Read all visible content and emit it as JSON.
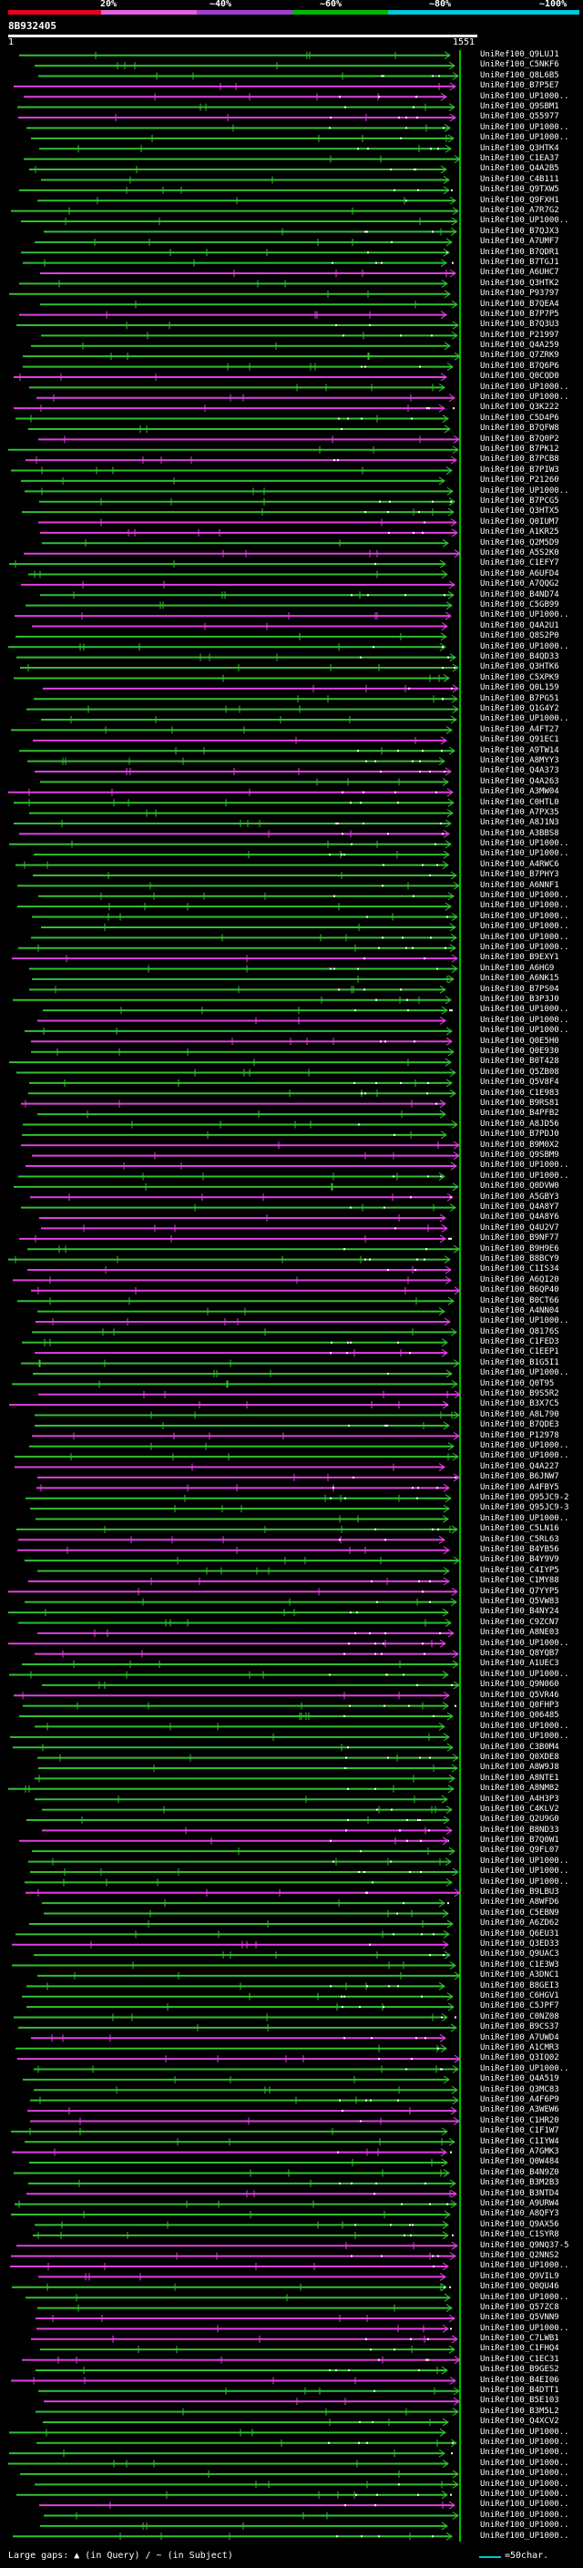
{
  "scale": {
    "ticks": [
      "20%",
      "~40%",
      "~60%",
      "~80%",
      "~100%"
    ],
    "colors": [
      "#e8001c",
      "#e060e0",
      "#a040d0",
      "#00b800",
      "#00c8d8"
    ]
  },
  "query": {
    "id": "8B932405",
    "start": "1",
    "end": "1551"
  },
  "hits": [
    "UniRef100_Q9LUJ1",
    "UniRef100_C5NKF6",
    "UniRef100_Q8L6B5",
    "UniRef100_B7P5E7",
    "UniRef100_UP1000..",
    "UniRef100_Q9SBM1",
    "UniRef100_Q55977",
    "UniRef100_UP1000..",
    "UniRef100_UP1000..",
    "UniRef100_Q3HTK4",
    "UniRef100_C1EA37",
    "UniRef100_Q4A2B5",
    "UniRef100_C4B111",
    "UniRef100_Q9TXW5",
    "UniRef100_Q9FXH1",
    "UniRef100_A7R7G2",
    "UniRef100_UP1000..",
    "UniRef100_B7QJX3",
    "UniRef100_A7UMF7",
    "UniRef100_B7QDR1",
    "UniRef100_B7TGJ1",
    "UniRef100_A6UHC7",
    "UniRef100_Q3HTK2",
    "UniRef100_P93797",
    "UniRef100_B7QEA4",
    "UniRef100_B7P7P5",
    "UniRef100_B7Q3U3",
    "UniRef100_P21997",
    "UniRef100_Q4A259",
    "UniRef100_Q7ZRK9",
    "UniRef100_B7Q6P6",
    "UniRef100_Q0CQD0",
    "UniRef100_UP1000..",
    "UniRef100_UP1000..",
    "UniRef100_Q3K222",
    "UniRef100_C5D4P6",
    "UniRef100_B7QFW8",
    "UniRef100_B7Q0P2",
    "UniRef100_B7PK12",
    "UniRef100_B7PCB8",
    "UniRef100_B7PIW3",
    "UniRef100_P21260",
    "UniRef100_UP1000..",
    "UniRef100_B7PCG5",
    "UniRef100_Q3HTX5",
    "UniRef100_Q0IUM7",
    "UniRef100_A1KR25",
    "UniRef100_Q2M5D9",
    "UniRef100_A5S2K0",
    "UniRef100_C1EFY7",
    "UniRef100_A6UFD4",
    "UniRef100_A7QQG2",
    "UniRef100_B4ND74",
    "UniRef100_C5GB99",
    "UniRef100_UP1000..",
    "UniRef100_Q4A2U1",
    "UniRef100_Q8S2P0",
    "UniRef100_UP1000..",
    "UniRef100_B4QD33",
    "UniRef100_Q3HTK6",
    "UniRef100_C5XPK9",
    "UniRef100_Q0L159",
    "UniRef100_B7PG51",
    "UniRef100_Q1G4Y2",
    "UniRef100_UP1000..",
    "UniRef100_A4FT27",
    "UniRef100_Q91EC1",
    "UniRef100_A9TW14",
    "UniRef100_A8MYY3",
    "UniRef100_Q4A373",
    "UniRef100_Q4A263",
    "UniRef100_A3MW04",
    "UniRef100_C0HTL0",
    "UniRef100_A7PX35",
    "UniRef100_A8J1N3",
    "UniRef100_A3BBS8",
    "UniRef100_UP1000..",
    "UniRef100_UP1000..",
    "UniRef100_A4RWC6",
    "UniRef100_B7PHY3",
    "UniRef100_A6NNF1",
    "UniRef100_UP1000..",
    "UniRef100_UP1000..",
    "UniRef100_UP1000..",
    "UniRef100_UP1000..",
    "UniRef100_UP1000..",
    "UniRef100_UP1000..",
    "UniRef100_B9EXY1",
    "UniRef100_A6HG9",
    "UniRef100_A6NK15",
    "UniRef100_B7PS04",
    "UniRef100_B3P3J0",
    "UniRef100_UP1000..",
    "UniRef100_UP1000..",
    "UniRef100_UP1000..",
    "UniRef100_Q0E5H0",
    "UniRef100_Q0E930",
    "UniRef100_B0T428",
    "UniRef100_Q5ZB08",
    "UniRef100_Q5V8F4",
    "UniRef100_C1E983",
    "UniRef100_B9RS81",
    "UniRef100_B4PFB2",
    "UniRef100_A8JD56",
    "UniRef100_B7PDJ0",
    "UniRef100_B9M0X2",
    "UniRef100_Q9SBM9",
    "UniRef100_UP1000..",
    "UniRef100_UP1000..",
    "UniRef100_Q0DVW0",
    "UniRef100_A5GBY3",
    "UniRef100_Q4A8Y7",
    "UniRef100_Q4A8Y6",
    "UniRef100_Q4U2V7",
    "UniRef100_B9NF77",
    "UniRef100_B9H9E6",
    "UniRef100_B8BCY9",
    "UniRef100_C1IS34",
    "UniRef100_A6QI20",
    "UniRef100_B6QP40",
    "UniRef100_B0CT66",
    "UniRef100_A4NN04",
    "UniRef100_UP1000..",
    "UniRef100_Q8176S",
    "UniRef100_C1FED3",
    "UniRef100_C1EEP1",
    "UniRef100_B1G5I1",
    "UniRef100_UP1000..",
    "UniRef100_Q0T95",
    "UniRef100_B9S5R2",
    "UniRef100_B3X7C5",
    "UniRef100_A8L790",
    "UniRef100_B7QDE3",
    "UniRef100_P12978",
    "UniRef100_UP1000..",
    "UniRef100_UP1000..",
    "UniRef100_Q4A227",
    "UniRef100_B6JNW7",
    "UniRef100_A4FBY5",
    "UniRef100_Q95JC9-2",
    "UniRef100_Q95JC9-3",
    "UniRef100_UP1000..",
    "UniRef100_C5LN16",
    "UniRef100_C5RL63",
    "UniRef100_B4YB56",
    "UniRef100_B4Y9V9",
    "UniRef100_C4IYP5",
    "UniRef100_C1MY88",
    "UniRef100_Q7YYP5",
    "UniRef100_Q5VW83",
    "UniRef100_B4NY24",
    "UniRef100_C9ZCN7",
    "UniRef100_A8NE03",
    "UniRef100_UP1000..",
    "UniRef100_Q8YQB7",
    "UniRef100_A1UEC3",
    "UniRef100_UP1000..",
    "UniRef100_Q9N060",
    "UniRef100_Q5VR46",
    "UniRef100_Q0FHP3",
    "UniRef100_Q06485",
    "UniRef100_UP1000..",
    "UniRef100_UP1000..",
    "UniRef100_C3B0M4",
    "UniRef100_Q0XDE8",
    "UniRef100_A8W9J8",
    "UniRef100_A8NTE1",
    "UniRef100_A8NM82",
    "UniRef100_A4H3P3",
    "UniRef100_C4KLV2",
    "UniRef100_Q2U9G0",
    "UniRef100_B8ND33",
    "UniRef100_B7Q0W1",
    "UniRef100_Q9FL07",
    "UniRef100_UP1000..",
    "UniRef100_UP1000..",
    "UniRef100_UP1000..",
    "UniRef100_B9LBU3",
    "UniRef100_A8WFD6",
    "UniRef100_C5EBN9",
    "UniRef100_A6ZD62",
    "UniRef100_Q6EU31",
    "UniRef100_Q3ED33",
    "UniRef100_Q9UAC3",
    "UniRef100_C1E3W3",
    "UniRef100_A3DNC1",
    "UniRef100_B8GEI3",
    "UniRef100_C6HGV1",
    "UniRef100_C5JPF7",
    "UniRef100_C0NZ08",
    "UniRef100_B9CS37",
    "UniRef100_A7UWD4",
    "UniRef100_A1CMR3",
    "UniRef100_Q3IQ02",
    "UniRef100_UP1000..",
    "UniRef100_Q4A519",
    "UniRef100_Q3MC83",
    "UniRef100_A4F6P9",
    "UniRef100_A3WEW6",
    "UniRef100_C1HR20",
    "UniRef100_C1F1W7",
    "UniRef100_C1IYW4",
    "UniRef100_A7GMK3",
    "UniRef100_Q0W484",
    "UniRef100_B4N9Z0",
    "UniRef100_B3M2B3",
    "UniRef100_B3NTD4",
    "UniRef100_A9URW4",
    "UniRef100_A8QFY3",
    "UniRef100_Q9AX56",
    "UniRef100_C1SYR8",
    "UniRef100_Q9NQ37-5",
    "UniRef100_Q2NNS2",
    "UniRef100_UP1000..",
    "UniRef100_Q9VIL9",
    "UniRef100_Q0QU46",
    "UniRef100_UP1000..",
    "UniRef100_Q57ZC8",
    "UniRef100_Q5VNN9",
    "UniRef100_UP1000..",
    "UniRef100_C7LWB1",
    "UniRef100_C1FHQ4",
    "UniRef100_C1EC31",
    "UniRef100_B9GES2",
    "UniRef100_B4EI06",
    "UniRef100_B4DTT1",
    "UniRef100_B5E103",
    "UniRef100_B3M5L2",
    "UniRef100_Q4XCV2",
    "UniRef100_UP1000..",
    "UniRef100_UP1000..",
    "UniRef100_UP1000..",
    "UniRef100_UP1000..",
    "UniRef100_UP1000..",
    "UniRef100_UP1000..",
    "UniRef100_UP1000..",
    "UniRef100_UP1000..",
    "UniRef100_UP1000..",
    "UniRef100_UP1000..",
    "UniRef100_UP1000.."
  ],
  "legend": {
    "text": "Large gaps: ▲ (in Query) / ~ (in Subject)",
    "scale_text": "=50char."
  }
}
